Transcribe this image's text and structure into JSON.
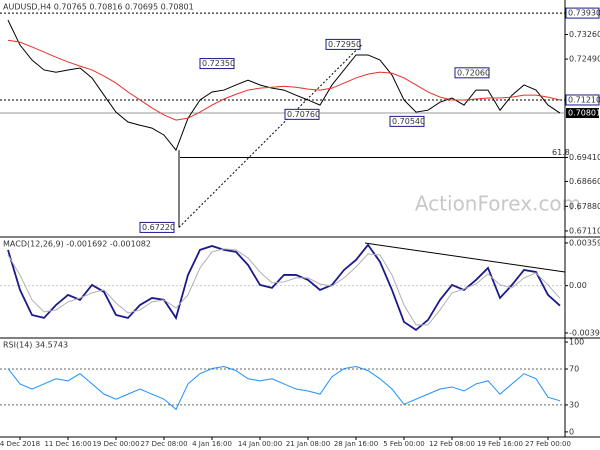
{
  "chart_data": [
    {
      "type": "line",
      "title": "AUDUSD,H4 0.70765 0.70816 0.70695 0.70801",
      "watermark": "ActionForex.com",
      "categories": [
        null,
        "4 Dec 2018",
        null,
        null,
        null,
        "11 Dec 16:00",
        null,
        null,
        null,
        "19 Dec 00:00",
        null,
        null,
        null,
        "27 Dec 08:00",
        null,
        null,
        null,
        "4 Jan 16:00",
        null,
        null,
        null,
        "14 Jan 00:00",
        null,
        null,
        null,
        "21 Jan 08:00",
        null,
        null,
        null,
        "28 Jan 16:00",
        null,
        null,
        null,
        "5 Feb 00:00",
        null,
        null,
        null,
        "12 Feb 08:00",
        null,
        null,
        null,
        "19 Feb 16:00",
        null,
        null,
        null,
        "27 Feb 00:00",
        null
      ],
      "series": [
        {
          "color": "#000000",
          "values": [
            0.7371,
            0.7293,
            0.7246,
            0.7215,
            0.7208,
            0.7215,
            0.7221,
            0.719,
            0.7136,
            0.7083,
            0.7052,
            0.7042,
            0.7033,
            0.7011,
            0.6964,
            0.7064,
            0.7121,
            0.7146,
            0.7152,
            0.7168,
            0.7183,
            0.7168,
            0.7158,
            0.7152,
            0.7136,
            0.7121,
            0.7105,
            0.7168,
            0.7215,
            0.7262,
            0.7262,
            0.7246,
            0.7199,
            0.7121,
            0.7083,
            0.7089,
            0.7114,
            0.7127,
            0.7105,
            0.7152,
            0.7152,
            0.7089,
            0.7136,
            0.7168,
            0.7152,
            0.7105,
            0.708
          ]
        },
        {
          "color": "#e8302a",
          "values": [
            0.7308,
            0.7302,
            0.7287,
            0.7271,
            0.7255,
            0.724,
            0.7227,
            0.7215,
            0.7196,
            0.7174,
            0.7146,
            0.7121,
            0.7096,
            0.7074,
            0.7058,
            0.7064,
            0.7083,
            0.7105,
            0.7124,
            0.7139,
            0.7152,
            0.7158,
            0.7161,
            0.7164,
            0.7161,
            0.7155,
            0.7152,
            0.7158,
            0.7174,
            0.719,
            0.7202,
            0.7208,
            0.7205,
            0.719,
            0.7168,
            0.7146,
            0.713,
            0.7121,
            0.7121,
            0.7124,
            0.7127,
            0.7127,
            0.713,
            0.7136,
            0.7136,
            0.713,
            0.7121
          ]
        }
      ],
      "ylim": [
        0.6692,
        0.7434
      ],
      "yticks": [
        {
          "value": 0.7326,
          "label": "0.73260"
        },
        {
          "value": 0.7249,
          "label": "0.72490"
        },
        {
          "value": 0.6941,
          "label": "0.69410"
        },
        {
          "value": 0.6866,
          "label": "0.68660"
        },
        {
          "value": 0.6788,
          "label": "0.67880"
        },
        {
          "value": 0.6711,
          "label": "0.67110"
        }
      ],
      "annotations": [
        {
          "value": 0.7235,
          "label": "0.72350"
        },
        {
          "value": 0.7295,
          "label": "0.72950"
        },
        {
          "value": 0.7076,
          "label": "0.70760"
        },
        {
          "value": 0.7206,
          "label": "0.72060"
        },
        {
          "value": 0.7054,
          "label": "0.70540"
        },
        {
          "value": 0.6722,
          "label": "0.67220"
        }
      ],
      "levels": [
        {
          "value": 0.7393,
          "label": "0.73930"
        },
        {
          "value": 0.7121,
          "label": "0.71210"
        }
      ],
      "last": {
        "value": 0.70801,
        "label": "0.70801"
      },
      "fib_level": {
        "value": 0.6941,
        "label": "61.8"
      }
    },
    {
      "type": "line",
      "title": "MACD(12,26,9) -0.001692 -0.001082",
      "series": [
        {
          "color": "#1a1a8c",
          "values": [
            0.003,
            -0.00036,
            -0.00247,
            -0.00272,
            -0.00163,
            -0.00078,
            -0.0012,
            6e-05,
            -0.00053,
            -0.00247,
            -0.00272,
            -0.00163,
            -0.00104,
            -0.0012,
            -0.00272,
            0.0009,
            0.00301,
            0.00334,
            0.00301,
            0.00284,
            0.00174,
            6e-05,
            -0.00019,
            0.0009,
            0.0009,
            0.00048,
            -0.00036,
            6e-05,
            0.00132,
            0.00216,
            0.00343,
            0.002,
            -0.00036,
            -0.00306,
            -0.00373,
            -0.00289,
            -0.0012,
            6e-05,
            -0.00036,
            0.00048,
            0.00149,
            -0.00104,
            6e-05,
            0.00132,
            0.00115,
            -0.00078,
            -0.00169
          ]
        },
        {
          "color": "#b0b0b0",
          "values": [
            0.00258,
            0.0009,
            -0.0012,
            -0.00221,
            -0.00205,
            -0.00137,
            -0.00104,
            -0.00061,
            -0.00036,
            -0.00146,
            -0.0023,
            -0.00205,
            -0.00137,
            -0.0012,
            -0.00188,
            -0.00078,
            0.00149,
            0.00284,
            0.00309,
            0.00301,
            0.00233,
            0.00115,
            0.00023,
            0.00031,
            0.00065,
            0.00065,
            0.00014,
            -3e-05,
            0.00065,
            0.00157,
            0.00267,
            0.00258,
            0.0009,
            -0.00163,
            -0.00331,
            -0.00331,
            -0.00205,
            -0.00061,
            -0.00028,
            0.00014,
            0.00099,
            6e-05,
            -0.00019,
            0.00065,
            0.00107,
            6e-05,
            -0.00108
          ]
        }
      ],
      "ylim": [
        -0.00441,
        0.00401
      ],
      "yticks": [
        0.003592,
        {
          "value": 0,
          "label": "0.00"
        },
        -0.003986
      ]
    },
    {
      "type": "line",
      "title": "RSI(14) 34.5743",
      "series": [
        {
          "color": "#1e90ff",
          "values": [
            70.5,
            53.4,
            47.7,
            53.4,
            59.1,
            56.8,
            64.8,
            53.4,
            42.0,
            36.4,
            42.0,
            47.7,
            42.0,
            36.4,
            25.0,
            53.4,
            64.8,
            70.5,
            72.7,
            68.2,
            59.1,
            56.8,
            59.1,
            53.4,
            47.7,
            45.5,
            42.0,
            61.4,
            70.5,
            72.7,
            68.2,
            59.1,
            47.7,
            30.7,
            36.4,
            42.0,
            47.7,
            50.0,
            45.5,
            53.4,
            56.8,
            42.0,
            53.4,
            64.8,
            59.1,
            38.6,
            34.6
          ]
        }
      ],
      "ylim": [
        -5.7,
        104.5
      ],
      "yticks": [
        100,
        70,
        30,
        0
      ],
      "levels": [
        70,
        30
      ]
    }
  ]
}
